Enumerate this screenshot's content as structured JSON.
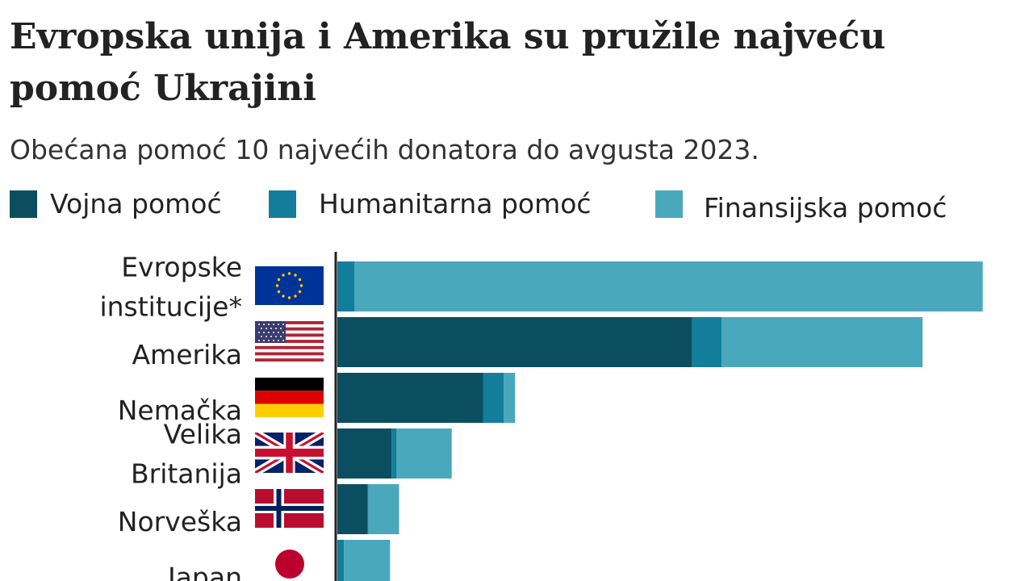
{
  "title": "Evropska unija i Amerika su pružile najveću pomoć Ukrajini",
  "subtitle": "Obećana pomoć 10 najvećih donatora do avgusta 2023.",
  "legend": [
    {
      "label": "Vojna pomoć",
      "color": "#0b4e5f"
    },
    {
      "label": "Humanitarna pomoć",
      "color": "#127e9c"
    },
    {
      "label": "Finansijska pomoć",
      "color": "#4aa8bd"
    }
  ],
  "chart_data": {
    "type": "bar",
    "orientation": "horizontal",
    "stacked": true,
    "title": "Evropska unija i Amerika su pružile najveću pomoć Ukrajini",
    "subtitle": "Obećana pomoć 10 najvećih donatora do avgusta 2023.",
    "xlabel": "",
    "ylabel": "",
    "grid": false,
    "legend_position": "top",
    "xlim": [
      0,
      80
    ],
    "categories": [
      {
        "label_lines": [
          "Evropske",
          "institucije*"
        ],
        "flag": "eu-flag-icon"
      },
      {
        "label_lines": [
          "Amerika"
        ],
        "flag": "usa-flag-icon"
      },
      {
        "label_lines": [
          "Nemačka"
        ],
        "flag": "germany-flag-icon"
      },
      {
        "label_lines": [
          "Velika",
          "Britanija"
        ],
        "flag": "uk-flag-icon"
      },
      {
        "label_lines": [
          "Norveška"
        ],
        "flag": "norway-flag-icon"
      },
      {
        "label_lines": [
          "Japan"
        ],
        "flag": "japan-flag-icon"
      }
    ],
    "series": [
      {
        "name": "Vojna pomoć",
        "values": [
          0,
          43.1,
          17.7,
          6.6,
          3.7,
          0
        ]
      },
      {
        "name": "Humanitarna pomoć",
        "values": [
          2.1,
          3.6,
          2.5,
          0.6,
          0.1,
          0.8
        ]
      },
      {
        "name": "Finansijska pomoć",
        "values": [
          76.3,
          24.4,
          1.4,
          6.7,
          3.7,
          5.6
        ]
      }
    ]
  }
}
